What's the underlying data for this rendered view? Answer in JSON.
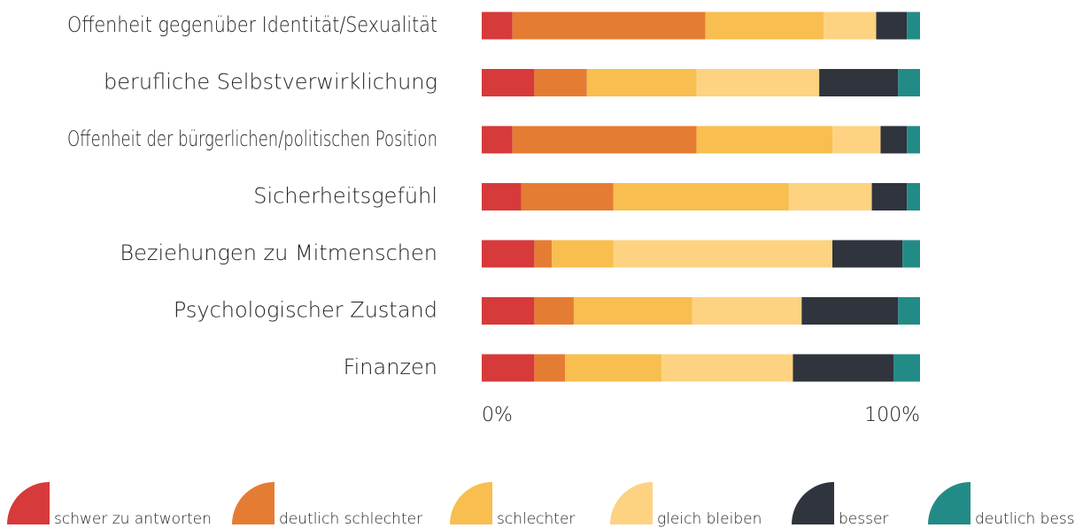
{
  "chart_data": {
    "type": "stacked_barh",
    "categories": [
      "Offenheit gegenüber Identität/Sexualität",
      "berufliche Selbstverwirklichung",
      "Offenheit der bürgerlichen/politischen Position",
      "Sicherheitsgefühl",
      "Beziehungen zu Mitmenschen",
      "Psychologischer Zustand",
      "Finanzen"
    ],
    "series": [
      {
        "name": "schwer zu antworten",
        "color": "#d63a3a",
        "values": [
          7,
          12,
          7,
          9,
          12,
          12,
          12
        ]
      },
      {
        "name": "deutlich schlechter",
        "color": "#e57c33",
        "values": [
          44,
          12,
          42,
          21,
          4,
          9,
          7
        ]
      },
      {
        "name": "schlechter",
        "color": "#f8be4f",
        "values": [
          27,
          25,
          31,
          40,
          14,
          27,
          22
        ]
      },
      {
        "name": "gleich bleiben",
        "color": "#fdd382",
        "values": [
          12,
          28,
          11,
          19,
          50,
          25,
          30
        ]
      },
      {
        "name": "besser",
        "color": "#2f343d",
        "values": [
          7,
          18,
          6,
          8,
          16,
          22,
          23
        ]
      },
      {
        "name": "deutlich besser",
        "color": "#238b86",
        "values": [
          3,
          5,
          3,
          3,
          4,
          5,
          6
        ]
      }
    ],
    "xlim": [
      0,
      100
    ],
    "xticks": [
      {
        "value": 0,
        "label": "0%"
      },
      {
        "value": 100,
        "label": "100%"
      }
    ]
  }
}
